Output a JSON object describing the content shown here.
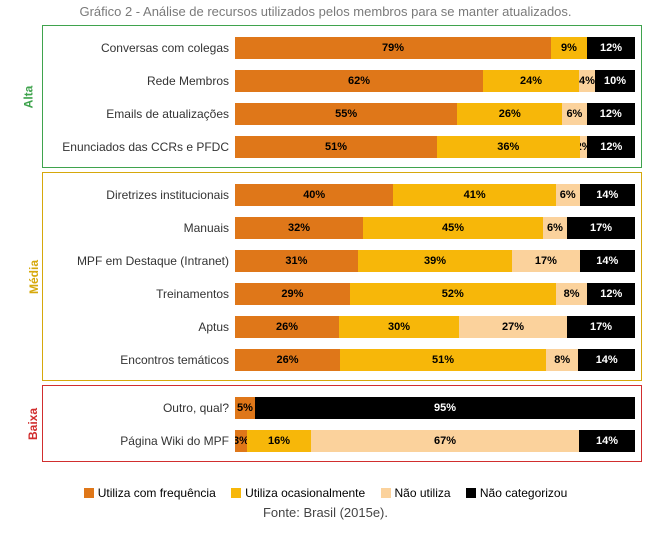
{
  "caption_top": "Gráfico 2 - Análise de recursos utilizados pelos membros para se manter atualizados.",
  "footer": "Fonte: Brasil (2015e).",
  "colors": {
    "freq": "#DF7719",
    "occas": "#F7B709",
    "none": "#FBD29C",
    "uncat": "#000000",
    "text_dark": "#000000",
    "text_light": "#ffffff"
  },
  "legend": [
    {
      "label": "Utiliza com frequência",
      "color": "#DF7719"
    },
    {
      "label": "Utiliza ocasionalmente",
      "color": "#F7B709"
    },
    {
      "label": "Não utiliza",
      "color": "#FBD29C"
    },
    {
      "label": "Não categorizou",
      "color": "#000000"
    }
  ],
  "groups": [
    {
      "id": "alta",
      "label": "Alta",
      "class": "grp-alta",
      "rows": [
        {
          "label": "Conversas com colegas",
          "values": [
            79,
            9,
            0,
            12
          ],
          "show": [
            "79%",
            "9%",
            "",
            "12%"
          ]
        },
        {
          "label": "Rede Membros",
          "values": [
            62,
            24,
            4,
            10
          ],
          "show": [
            "62%",
            "24%",
            "4%",
            "10%"
          ]
        },
        {
          "label": "Emails de atualizações",
          "values": [
            55,
            26,
            6,
            12
          ],
          "show": [
            "55%",
            "26%",
            "6%",
            "12%"
          ]
        },
        {
          "label": "Enunciados das CCRs e PFDC",
          "values": [
            51,
            36,
            2,
            12
          ],
          "show": [
            "51%",
            "36%",
            "2%",
            "12%"
          ]
        }
      ]
    },
    {
      "id": "media",
      "label": "Média",
      "class": "grp-media",
      "rows": [
        {
          "label": "Diretrizes institucionais",
          "values": [
            40,
            41,
            6,
            14
          ],
          "show": [
            "40%",
            "41%",
            "6%",
            "14%"
          ]
        },
        {
          "label": "Manuais",
          "values": [
            32,
            45,
            6,
            17
          ],
          "show": [
            "32%",
            "45%",
            "6%",
            "17%"
          ]
        },
        {
          "label": "MPF em Destaque (Intranet)",
          "values": [
            31,
            39,
            17,
            14
          ],
          "show": [
            "31%",
            "39%",
            "17%",
            "14%"
          ]
        },
        {
          "label": "Treinamentos",
          "values": [
            29,
            52,
            8,
            12
          ],
          "show": [
            "29%",
            "52%",
            "8%",
            "12%"
          ]
        },
        {
          "label": "Aptus",
          "values": [
            26,
            30,
            27,
            17
          ],
          "show": [
            "26%",
            "30%",
            "27%",
            "17%"
          ]
        },
        {
          "label": "Encontros temáticos",
          "values": [
            26,
            51,
            8,
            14
          ],
          "show": [
            "26%",
            "51%",
            "8%",
            "14%"
          ]
        }
      ]
    },
    {
      "id": "baixa",
      "label": "Baixa",
      "class": "grp-baixa",
      "rows": [
        {
          "label": "Outro, qual?",
          "values": [
            5,
            0,
            0,
            95
          ],
          "show": [
            "5%",
            "",
            "",
            "95%"
          ]
        },
        {
          "label": "Página Wiki do MPF",
          "values": [
            3,
            16,
            67,
            14
          ],
          "show": [
            "3%",
            "16%",
            "67%",
            "14%"
          ]
        }
      ]
    }
  ]
}
